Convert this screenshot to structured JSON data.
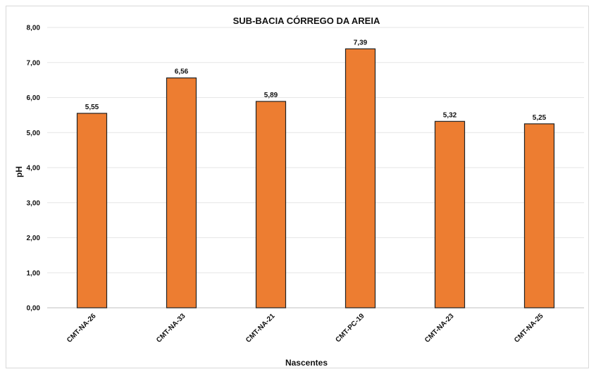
{
  "chart_data": {
    "type": "bar",
    "title": "SUB-BACIA CÓRREGO DA AREIA",
    "xlabel": "Nascentes",
    "ylabel": "pH",
    "categories": [
      "CMT-NA-26",
      "CMT-NA-33",
      "CMT-NA-21",
      "CMT-PC-19",
      "CMT-NA-23",
      "CMT-NA-25"
    ],
    "values": [
      5.55,
      6.56,
      5.89,
      7.39,
      5.32,
      5.25
    ],
    "value_labels": [
      "5,55",
      "6,56",
      "5,89",
      "7,39",
      "5,32",
      "5,25"
    ],
    "ylim": [
      0,
      8
    ],
    "yticks": [
      "0,00",
      "1,00",
      "2,00",
      "3,00",
      "4,00",
      "5,00",
      "6,00",
      "7,00",
      "8,00"
    ],
    "grid": true,
    "bar_color": "#ed7d31",
    "bar_edge_color": "#222222"
  }
}
